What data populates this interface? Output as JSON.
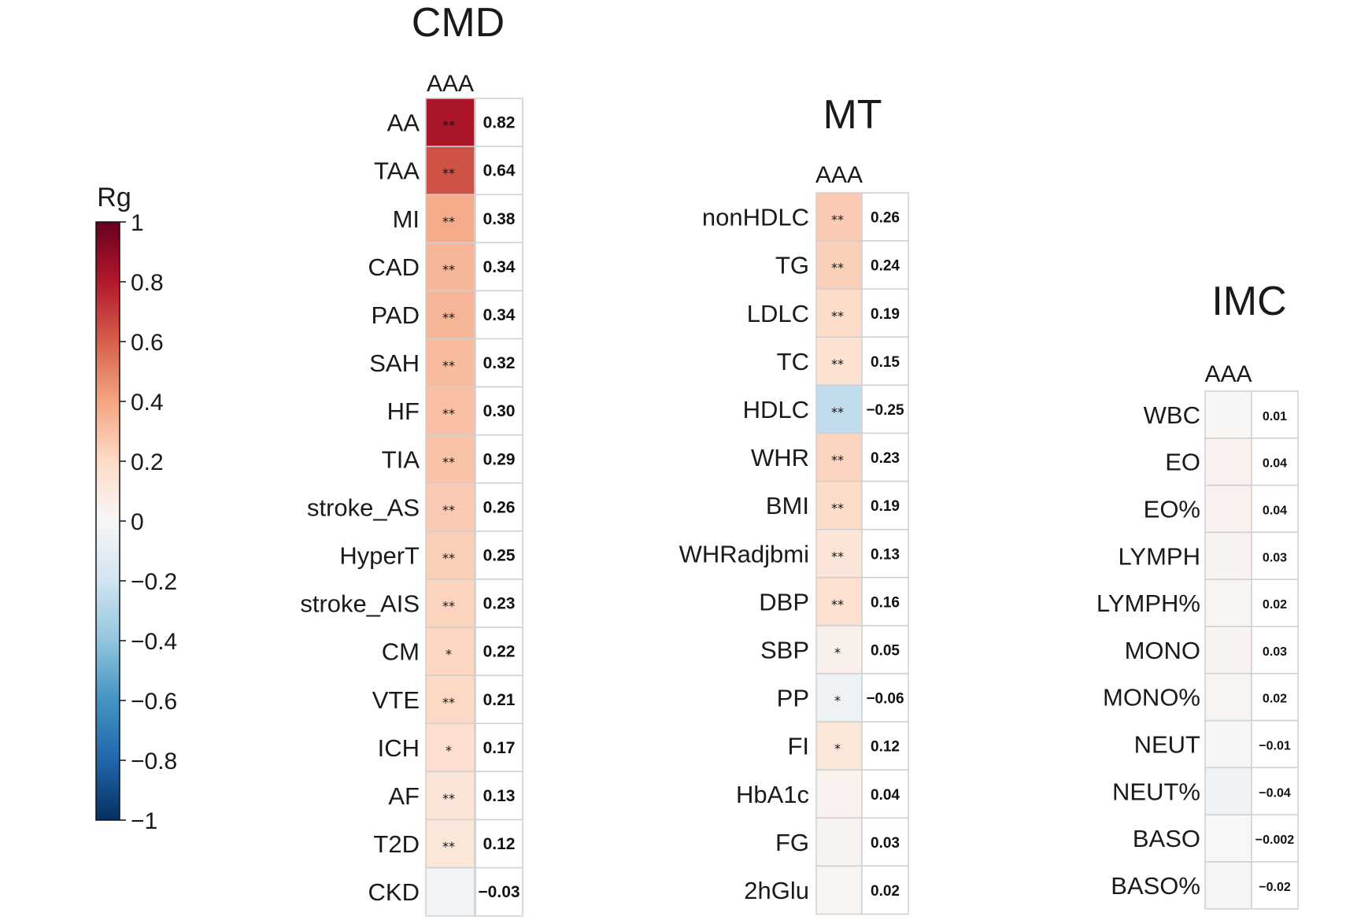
{
  "chart_data": [
    {
      "type": "heatmap",
      "title": "CMD",
      "column": "AAA",
      "rows": [
        "AA",
        "TAA",
        "MI",
        "CAD",
        "PAD",
        "SAH",
        "HF",
        "TIA",
        "stroke_AS",
        "HyperT",
        "stroke_AIS",
        "CM",
        "VTE",
        "ICH",
        "AF",
        "T2D",
        "CKD"
      ],
      "values": [
        0.82,
        0.64,
        0.38,
        0.34,
        0.34,
        0.32,
        0.3,
        0.29,
        0.26,
        0.25,
        0.23,
        0.22,
        0.21,
        0.17,
        0.13,
        0.12,
        -0.03
      ],
      "value_labels": [
        "0.82",
        "0.64",
        "0.38",
        "0.34",
        "0.34",
        "0.32",
        "0.30",
        "0.29",
        "0.26",
        "0.25",
        "0.23",
        "0.22",
        "0.21",
        "0.17",
        "0.13",
        "0.12",
        "−0.03"
      ],
      "significance": [
        "**",
        "**",
        "**",
        "**",
        "**",
        "**",
        "**",
        "**",
        "**",
        "**",
        "**",
        "*",
        "**",
        "*",
        "**",
        "**",
        ""
      ]
    },
    {
      "type": "heatmap",
      "title": "MT",
      "column": "AAA",
      "rows": [
        "nonHDLC",
        "TG",
        "LDLC",
        "TC",
        "HDLC",
        "WHR",
        "BMI",
        "WHRadjbmi",
        "DBP",
        "SBP",
        "PP",
        "FI",
        "HbA1c",
        "FG",
        "2hGlu"
      ],
      "values": [
        0.26,
        0.24,
        0.19,
        0.15,
        -0.25,
        0.23,
        0.19,
        0.13,
        0.16,
        0.05,
        -0.06,
        0.12,
        0.04,
        0.03,
        0.02
      ],
      "value_labels": [
        "0.26",
        "0.24",
        "0.19",
        "0.15",
        "−0.25",
        "0.23",
        "0.19",
        "0.13",
        "0.16",
        "0.05",
        "−0.06",
        "0.12",
        "0.04",
        "0.03",
        "0.02"
      ],
      "significance": [
        "**",
        "**",
        "**",
        "**",
        "**",
        "**",
        "**",
        "**",
        "**",
        "*",
        "*",
        "*",
        "",
        "",
        ""
      ]
    },
    {
      "type": "heatmap",
      "title": "IMC",
      "column": "AAA",
      "rows": [
        "WBC",
        "EO",
        "EO%",
        "LYMPH",
        "LYMPH%",
        "MONO",
        "MONO%",
        "NEUT",
        "NEUT%",
        "BASO",
        "BASO%"
      ],
      "values": [
        0.01,
        0.04,
        0.04,
        0.03,
        0.02,
        0.03,
        0.02,
        -0.01,
        -0.04,
        -0.002,
        -0.02
      ],
      "value_labels": [
        "0.01",
        "0.04",
        "0.04",
        "0.03",
        "0.02",
        "0.03",
        "0.02",
        "−0.01",
        "−0.04",
        "−0.002",
        "−0.02"
      ],
      "significance": [
        "",
        "",
        "",
        "",
        "",
        "",
        "",
        "",
        "",
        "",
        ""
      ]
    }
  ],
  "colorbar": {
    "label": "Rg",
    "range": [
      -1,
      1
    ],
    "ticks": [
      1,
      0.8,
      0.6,
      0.4,
      0.2,
      0,
      -0.2,
      -0.4,
      -0.6,
      -0.8,
      -1
    ],
    "tick_labels": [
      "1",
      "0.8",
      "0.6",
      "0.4",
      "0.2",
      "0",
      "−0.2",
      "−0.4",
      "−0.6",
      "−0.8",
      "−1"
    ],
    "colormap": "RdBu_r",
    "stops": [
      "#053061",
      "#2166ac",
      "#4393c3",
      "#92c5de",
      "#d1e5f0",
      "#f7f7f7",
      "#fddbc7",
      "#f4a582",
      "#d6604d",
      "#b2182b",
      "#67001f"
    ]
  }
}
